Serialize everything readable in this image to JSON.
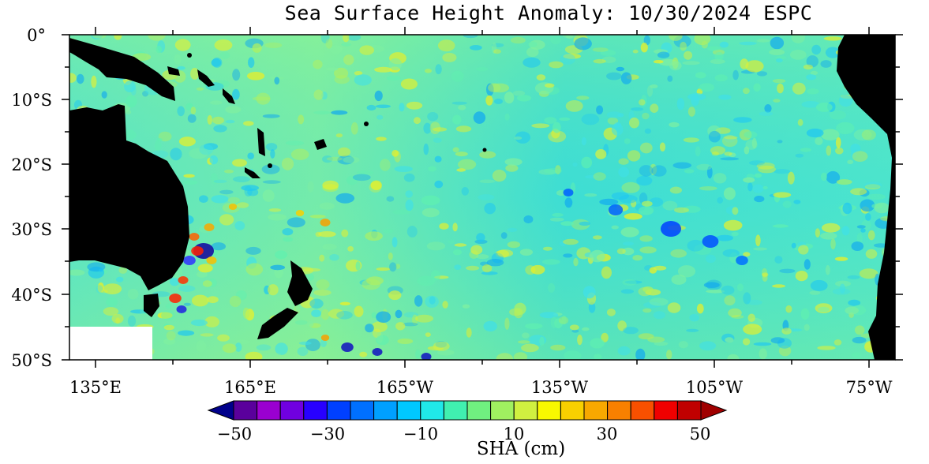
{
  "title": "Sea Surface Height Anomaly: 10/30/2024 ESPC",
  "map": {
    "lat_labels": [
      "0°",
      "10°S",
      "20°S",
      "30°S",
      "40°S",
      "50°S"
    ],
    "lon_labels": [
      "135°E",
      "165°E",
      "165°W",
      "135°W",
      "105°W",
      "75°W"
    ],
    "land_color": "#000000",
    "no_data_color": "#ffffff"
  },
  "colorbar": {
    "labels": [
      "−50",
      "−30",
      "−10",
      "10",
      "30",
      "50"
    ],
    "units": "SHA (cm)",
    "low_extension_color": "#00008b",
    "high_extension_color": "#a00000",
    "colors": [
      "#5a009c",
      "#9a00d0",
      "#7000e0",
      "#2800ff",
      "#0040ff",
      "#0070ff",
      "#00a0ff",
      "#00c8ff",
      "#20e8e8",
      "#40f0b0",
      "#70f080",
      "#a0f060",
      "#d0f040",
      "#f8f800",
      "#f8d000",
      "#f8a800",
      "#f88000",
      "#f85000",
      "#f00000",
      "#c00000"
    ]
  }
}
